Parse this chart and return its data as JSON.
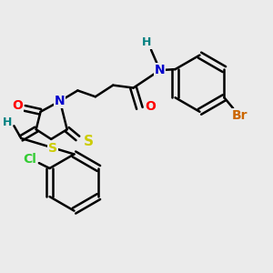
{
  "bg_color": "#ebebeb",
  "bond_color": "#000000",
  "bond_width": 1.8,
  "colors": {
    "C": "#000000",
    "N": "#0000cc",
    "O": "#ff0000",
    "S": "#cccc00",
    "Cl": "#33cc33",
    "Br": "#cc6600",
    "H": "#008080"
  },
  "font_size": 9
}
